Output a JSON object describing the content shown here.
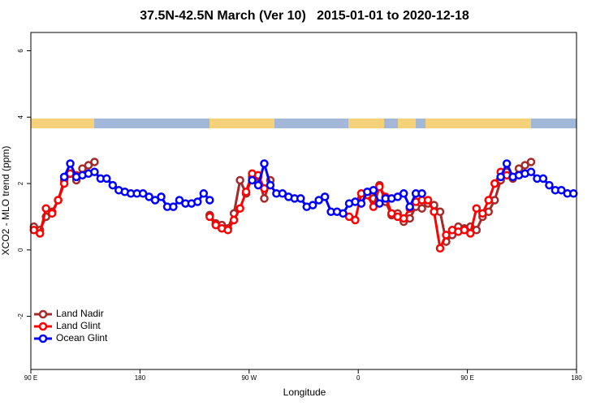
{
  "chart_data": {
    "type": "line",
    "title": "37.5N-42.5N March (Ver 10)   2015-01-01 to 2020-12-18",
    "xlabel": "Longitude",
    "ylabel": "XCO2 - MLO trend (ppm)",
    "xlim": [
      90,
      540
    ],
    "ylim": [
      -3.6,
      6.55
    ],
    "xticks": [
      {
        "value": 90,
        "label": "90 E"
      },
      180,
      {
        "value": 270,
        "label": "90 W"
      },
      {
        "value": 360,
        "label": "0"
      },
      {
        "value": 450,
        "label": "90 E"
      },
      {
        "value": 540,
        "label": "180"
      }
    ],
    "yticks": [
      -2,
      0,
      2,
      4,
      6
    ],
    "legend": "bottom-left",
    "x": [
      92.5,
      97.5,
      102.5,
      107.5,
      112.5,
      117.5,
      122.5,
      127.5,
      132.5,
      137.5,
      142.5,
      147.5,
      152.5,
      157.5,
      162.5,
      167.5,
      172.5,
      177.5,
      182.5,
      187.5,
      192.5,
      197.5,
      202.5,
      207.5,
      212.5,
      217.5,
      222.5,
      227.5,
      232.5,
      237.5,
      242.5,
      247.5,
      252.5,
      257.5,
      262.5,
      267.5,
      272.5,
      277.5,
      282.5,
      287.5,
      292.5,
      297.5,
      302.5,
      307.5,
      312.5,
      317.5,
      322.5,
      327.5,
      332.5,
      337.5,
      342.5,
      347.5,
      352.5,
      357.5,
      362.5,
      367.5,
      372.5,
      377.5,
      382.5,
      387.5,
      392.5,
      397.5,
      402.5,
      407.5,
      412.5,
      417.5,
      422.5,
      427.5,
      432.5,
      437.5,
      442.5,
      447.5,
      452.5,
      457.5,
      462.5,
      467.5,
      472.5,
      477.5,
      482.5,
      487.5,
      492.5,
      497.5,
      502.5,
      507.5,
      512.5,
      517.5,
      522.5,
      527.5,
      532.5,
      537.5
    ],
    "series": [
      {
        "name": "Land Nadir",
        "color": "#a52a2a",
        "values": [
          0.7,
          0.6,
          1.0,
          1.15,
          1.5,
          2.1,
          2.3,
          2.1,
          2.45,
          2.55,
          2.65,
          null,
          null,
          null,
          null,
          null,
          null,
          null,
          null,
          null,
          null,
          null,
          null,
          null,
          null,
          null,
          null,
          null,
          null,
          1.05,
          0.8,
          0.75,
          0.65,
          1.1,
          2.1,
          1.7,
          2.2,
          2.2,
          1.55,
          2.1,
          null,
          null,
          null,
          null,
          null,
          null,
          null,
          null,
          null,
          null,
          null,
          null,
          null,
          null,
          1.55,
          1.65,
          1.55,
          1.95,
          1.45,
          1.05,
          1.1,
          0.85,
          0.95,
          1.3,
          1.25,
          1.4,
          1.35,
          1.15,
          0.25,
          0.45,
          0.7,
          0.65,
          0.7,
          0.6,
          1.0,
          1.15,
          1.5,
          2.1,
          2.35,
          2.15,
          2.45,
          2.55,
          2.65,
          null,
          null,
          null,
          null,
          null,
          null,
          null
        ]
      },
      {
        "name": "Land Glint",
        "color": "#ff0000",
        "values": [
          0.6,
          0.5,
          1.25,
          1.1,
          1.5,
          2.0,
          2.3,
          2.25,
          null,
          null,
          null,
          null,
          null,
          null,
          null,
          null,
          null,
          null,
          null,
          null,
          null,
          null,
          null,
          null,
          null,
          null,
          null,
          null,
          null,
          1.0,
          0.75,
          0.65,
          0.6,
          0.9,
          1.25,
          1.75,
          2.3,
          2.25,
          1.85,
          null,
          null,
          null,
          null,
          null,
          null,
          null,
          null,
          null,
          null,
          null,
          null,
          null,
          1.0,
          0.9,
          1.7,
          1.65,
          1.3,
          1.9,
          1.6,
          1.1,
          1.0,
          0.95,
          1.25,
          1.45,
          1.5,
          1.5,
          1.15,
          0.05,
          0.45,
          0.6,
          0.55,
          0.6,
          0.5,
          1.25,
          1.1,
          1.5,
          2.0,
          2.35,
          2.25,
          null,
          null,
          null,
          null,
          null,
          null,
          null,
          null,
          null,
          null,
          null
        ]
      },
      {
        "name": "Ocean Glint",
        "color": "#0000ff",
        "values": [
          null,
          null,
          null,
          null,
          null,
          2.2,
          2.6,
          2.2,
          2.25,
          2.3,
          2.35,
          2.15,
          2.15,
          1.95,
          1.8,
          1.75,
          1.7,
          1.7,
          1.7,
          1.6,
          1.5,
          1.6,
          1.3,
          1.3,
          1.5,
          1.4,
          1.4,
          1.45,
          1.7,
          1.5,
          null,
          null,
          null,
          null,
          null,
          null,
          2.1,
          1.95,
          2.6,
          1.95,
          1.7,
          1.7,
          1.6,
          1.55,
          1.55,
          1.3,
          1.35,
          1.5,
          1.6,
          1.15,
          1.15,
          1.1,
          1.4,
          1.45,
          1.4,
          1.75,
          1.8,
          1.4,
          1.55,
          1.55,
          1.6,
          1.7,
          1.3,
          1.7,
          1.7,
          null,
          null,
          null,
          null,
          null,
          null,
          null,
          null,
          null,
          null,
          null,
          null,
          2.2,
          2.6,
          2.2,
          2.25,
          2.3,
          2.35,
          2.15,
          2.15,
          1.95,
          1.8,
          1.8,
          1.7,
          1.7
        ]
      }
    ]
  }
}
